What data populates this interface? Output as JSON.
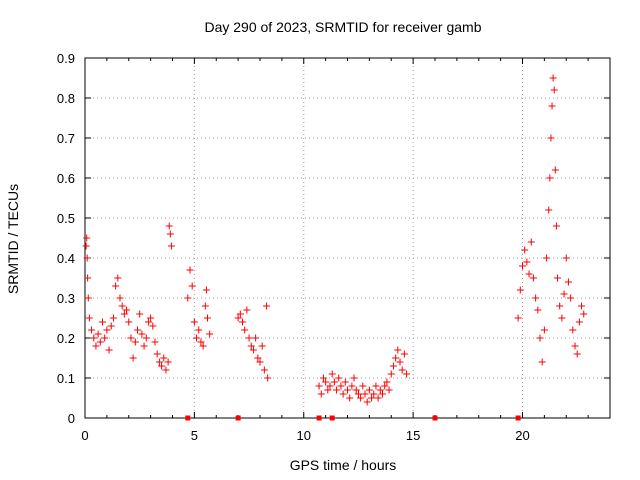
{
  "chart_data": {
    "type": "scatter",
    "title": "Day 290 of 2023, SRMTID for receiver gamb",
    "xlabel": "GPS time / hours",
    "ylabel": "SRMTID / TECUs",
    "xlim": [
      0,
      24
    ],
    "ylim": [
      0,
      0.9
    ],
    "x_ticks": [
      0,
      5,
      10,
      15,
      20
    ],
    "y_ticks": [
      0,
      0.1,
      0.2,
      0.3,
      0.4,
      0.5,
      0.6,
      0.7,
      0.8,
      0.9
    ],
    "x_tick_labels": [
      "0",
      "5",
      "10",
      "15",
      "20"
    ],
    "y_tick_labels": [
      "0",
      "0.1",
      "0.2",
      "0.3",
      "0.4",
      "0.5",
      "0.6",
      "0.7",
      "0.8",
      "0.9"
    ],
    "grid": true,
    "marker": "+",
    "series": [
      {
        "name": "SRMTID",
        "color": "#ff0000",
        "points": [
          [
            0.05,
            0.43
          ],
          [
            0.08,
            0.45
          ],
          [
            0.1,
            0.4
          ],
          [
            0.12,
            0.35
          ],
          [
            0.15,
            0.3
          ],
          [
            0.2,
            0.25
          ],
          [
            0.3,
            0.22
          ],
          [
            0.4,
            0.2
          ],
          [
            0.5,
            0.18
          ],
          [
            0.6,
            0.21
          ],
          [
            0.7,
            0.19
          ],
          [
            0.8,
            0.24
          ],
          [
            0.9,
            0.2
          ],
          [
            1.0,
            0.22
          ],
          [
            1.1,
            0.17
          ],
          [
            1.2,
            0.23
          ],
          [
            1.3,
            0.25
          ],
          [
            1.4,
            0.33
          ],
          [
            1.5,
            0.35
          ],
          [
            1.6,
            0.3
          ],
          [
            1.7,
            0.28
          ],
          [
            1.8,
            0.26
          ],
          [
            1.9,
            0.27
          ],
          [
            2.0,
            0.24
          ],
          [
            2.1,
            0.2
          ],
          [
            2.2,
            0.15
          ],
          [
            2.3,
            0.19
          ],
          [
            2.4,
            0.22
          ],
          [
            2.5,
            0.26
          ],
          [
            2.6,
            0.21
          ],
          [
            2.7,
            0.18
          ],
          [
            2.8,
            0.2
          ],
          [
            2.9,
            0.24
          ],
          [
            3.0,
            0.25
          ],
          [
            3.1,
            0.23
          ],
          [
            3.2,
            0.19
          ],
          [
            3.3,
            0.16
          ],
          [
            3.4,
            0.14
          ],
          [
            3.5,
            0.13
          ],
          [
            3.6,
            0.15
          ],
          [
            3.7,
            0.12
          ],
          [
            3.8,
            0.14
          ],
          [
            3.85,
            0.48
          ],
          [
            3.9,
            0.46
          ],
          [
            3.95,
            0.43
          ],
          [
            4.7,
            0.3
          ],
          [
            4.8,
            0.37
          ],
          [
            4.9,
            0.33
          ],
          [
            5.0,
            0.24
          ],
          [
            5.1,
            0.2
          ],
          [
            5.2,
            0.22
          ],
          [
            5.3,
            0.19
          ],
          [
            5.4,
            0.18
          ],
          [
            5.5,
            0.28
          ],
          [
            5.55,
            0.32
          ],
          [
            5.6,
            0.25
          ],
          [
            5.7,
            0.21
          ],
          [
            7.0,
            0.25
          ],
          [
            7.1,
            0.26
          ],
          [
            7.2,
            0.24
          ],
          [
            7.3,
            0.22
          ],
          [
            7.4,
            0.27
          ],
          [
            7.5,
            0.2
          ],
          [
            7.6,
            0.18
          ],
          [
            7.7,
            0.17
          ],
          [
            7.8,
            0.2
          ],
          [
            7.9,
            0.15
          ],
          [
            8.0,
            0.14
          ],
          [
            8.1,
            0.18
          ],
          [
            8.2,
            0.12
          ],
          [
            8.3,
            0.28
          ],
          [
            8.35,
            0.1
          ],
          [
            10.7,
            0.08
          ],
          [
            10.8,
            0.06
          ],
          [
            10.9,
            0.1
          ],
          [
            11.0,
            0.09
          ],
          [
            11.1,
            0.07
          ],
          [
            11.2,
            0.08
          ],
          [
            11.3,
            0.11
          ],
          [
            11.4,
            0.09
          ],
          [
            11.5,
            0.07
          ],
          [
            11.6,
            0.1
          ],
          [
            11.7,
            0.08
          ],
          [
            11.8,
            0.06
          ],
          [
            11.9,
            0.09
          ],
          [
            12.0,
            0.07
          ],
          [
            12.1,
            0.05
          ],
          [
            12.2,
            0.08
          ],
          [
            12.3,
            0.1
          ],
          [
            12.4,
            0.07
          ],
          [
            12.5,
            0.06
          ],
          [
            12.6,
            0.05
          ],
          [
            12.7,
            0.08
          ],
          [
            12.8,
            0.06
          ],
          [
            12.9,
            0.04
          ],
          [
            13.0,
            0.07
          ],
          [
            13.1,
            0.05
          ],
          [
            13.2,
            0.06
          ],
          [
            13.3,
            0.08
          ],
          [
            13.4,
            0.05
          ],
          [
            13.5,
            0.07
          ],
          [
            13.6,
            0.06
          ],
          [
            13.7,
            0.08
          ],
          [
            13.8,
            0.09
          ],
          [
            13.9,
            0.07
          ],
          [
            14.0,
            0.11
          ],
          [
            14.1,
            0.13
          ],
          [
            14.2,
            0.15
          ],
          [
            14.3,
            0.17
          ],
          [
            14.4,
            0.14
          ],
          [
            14.5,
            0.12
          ],
          [
            14.6,
            0.16
          ],
          [
            14.7,
            0.11
          ],
          [
            19.8,
            0.25
          ],
          [
            19.9,
            0.32
          ],
          [
            20.0,
            0.38
          ],
          [
            20.1,
            0.42
          ],
          [
            20.2,
            0.39
          ],
          [
            20.3,
            0.36
          ],
          [
            20.4,
            0.44
          ],
          [
            20.5,
            0.35
          ],
          [
            20.6,
            0.3
          ],
          [
            20.7,
            0.27
          ],
          [
            20.8,
            0.2
          ],
          [
            20.9,
            0.14
          ],
          [
            21.0,
            0.22
          ],
          [
            21.1,
            0.4
          ],
          [
            21.2,
            0.52
          ],
          [
            21.25,
            0.6
          ],
          [
            21.3,
            0.7
          ],
          [
            21.35,
            0.78
          ],
          [
            21.4,
            0.85
          ],
          [
            21.45,
            0.82
          ],
          [
            21.5,
            0.62
          ],
          [
            21.55,
            0.48
          ],
          [
            21.6,
            0.35
          ],
          [
            21.7,
            0.28
          ],
          [
            21.8,
            0.25
          ],
          [
            21.9,
            0.31
          ],
          [
            22.0,
            0.4
          ],
          [
            22.1,
            0.34
          ],
          [
            22.2,
            0.3
          ],
          [
            22.3,
            0.22
          ],
          [
            22.4,
            0.18
          ],
          [
            22.5,
            0.16
          ],
          [
            22.6,
            0.24
          ],
          [
            22.7,
            0.28
          ],
          [
            22.8,
            0.26
          ]
        ]
      }
    ],
    "baseline_points": [
      4.7,
      7.0,
      10.7,
      11.3,
      16.0,
      19.8
    ]
  }
}
